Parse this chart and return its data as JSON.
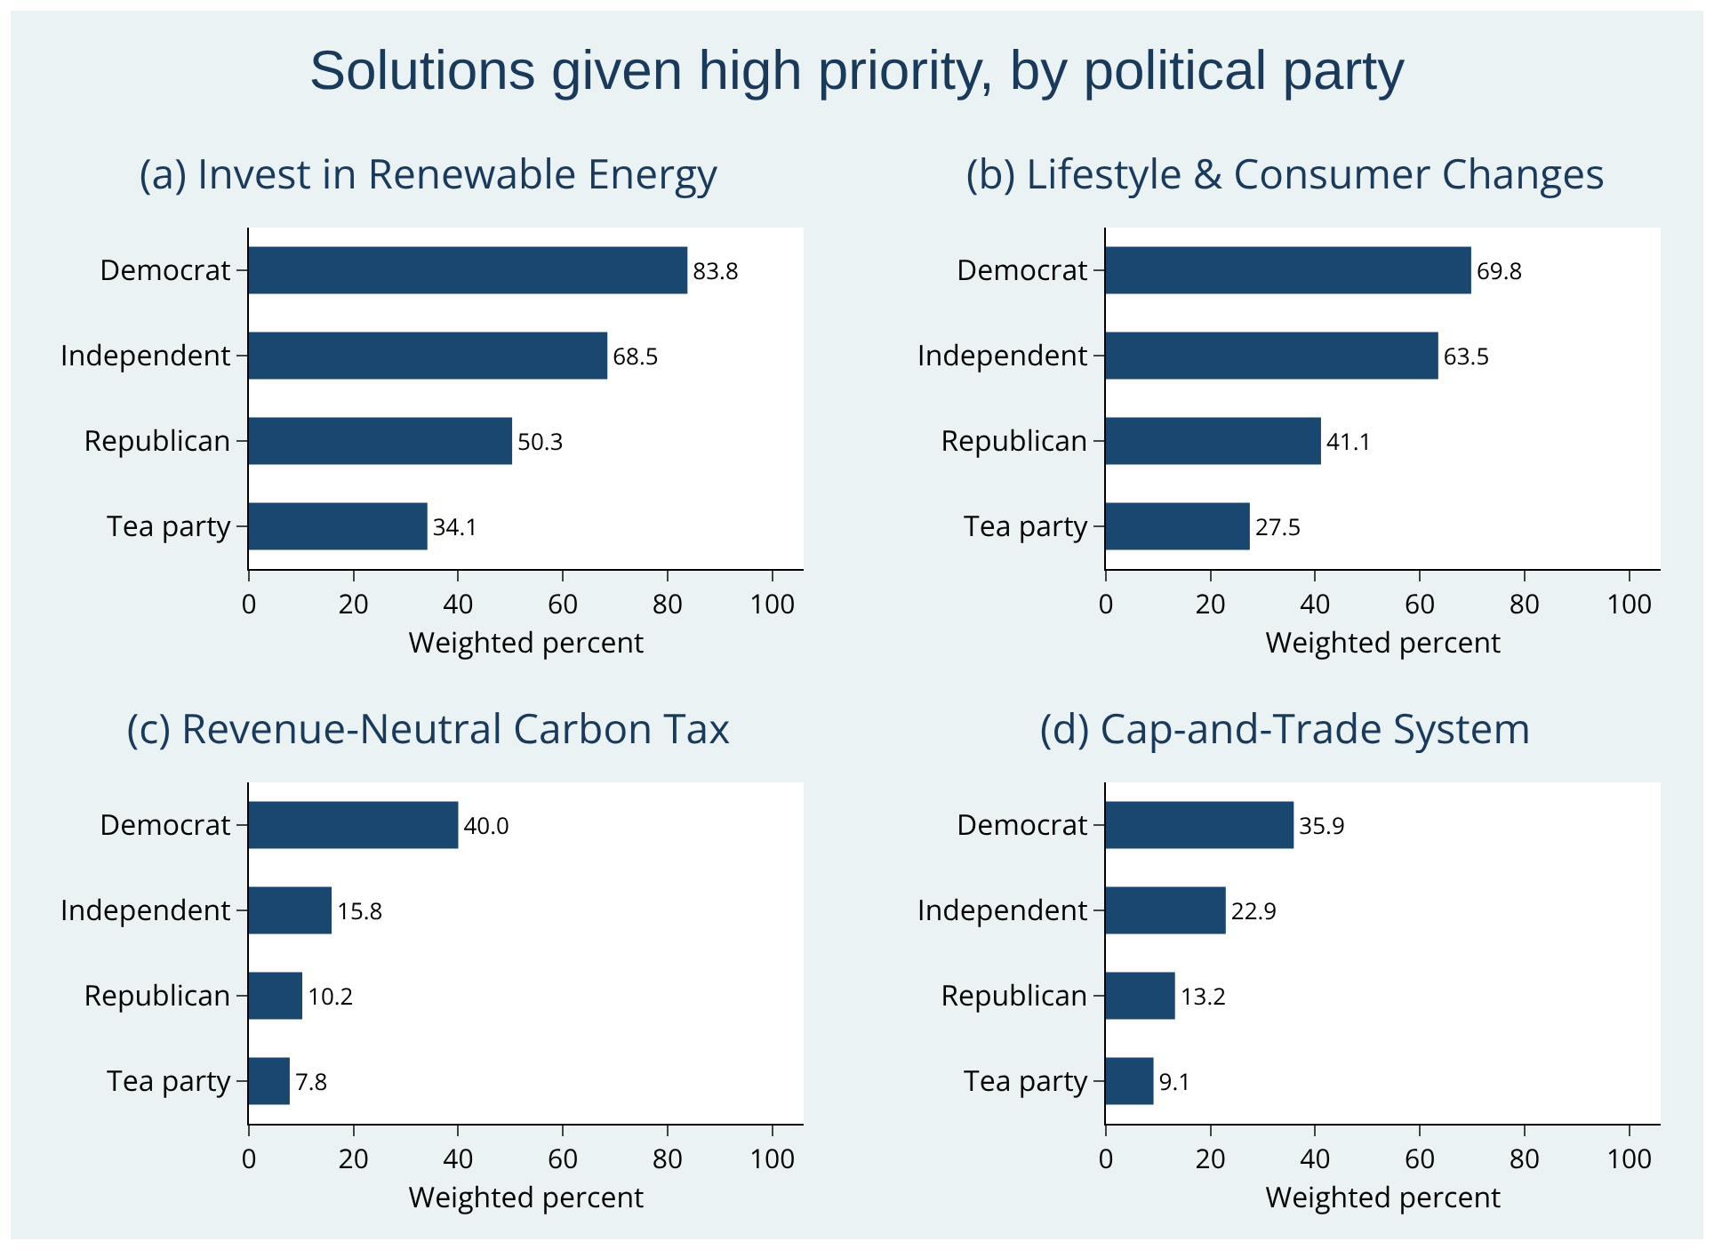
{
  "chart_data": [
    {
      "type": "bar",
      "orientation": "horizontal",
      "title": "(a) Invest in Renewable Energy",
      "annotations": [
        "Solutions given high priority, by political party"
      ],
      "categories": [
        "Democrat",
        "Independent",
        "Republican",
        "Tea party"
      ],
      "values": [
        83.8,
        68.5,
        50.3,
        34.1
      ],
      "value_labels": [
        "83.8",
        "68.5",
        "50.3",
        "34.1"
      ],
      "color": "#1a476f",
      "xlim": [
        0,
        106
      ],
      "xticks": [
        0,
        20,
        40,
        60,
        80,
        100
      ],
      "xlabel": "Weighted percent"
    },
    {
      "type": "bar",
      "orientation": "horizontal",
      "title": "(b) Lifestyle & Consumer Changes",
      "categories": [
        "Democrat",
        "Independent",
        "Republican",
        "Tea party"
      ],
      "values": [
        69.8,
        63.5,
        41.1,
        27.5
      ],
      "value_labels": [
        "69.8",
        "63.5",
        "41.1",
        "27.5"
      ],
      "color": "#1a476f",
      "xlim": [
        0,
        106
      ],
      "xticks": [
        0,
        20,
        40,
        60,
        80,
        100
      ],
      "xlabel": "Weighted percent"
    },
    {
      "type": "bar",
      "orientation": "horizontal",
      "title": "(c) Revenue-Neutral Carbon Tax",
      "categories": [
        "Democrat",
        "Independent",
        "Republican",
        "Tea party"
      ],
      "values": [
        40.0,
        15.8,
        10.2,
        7.8
      ],
      "value_labels": [
        "40.0",
        "15.8",
        "10.2",
        "7.8"
      ],
      "color": "#1a476f",
      "xlim": [
        0,
        106
      ],
      "xticks": [
        0,
        20,
        40,
        60,
        80,
        100
      ],
      "xlabel": "Weighted percent"
    },
    {
      "type": "bar",
      "orientation": "horizontal",
      "title": "(d) Cap-and-Trade System",
      "categories": [
        "Democrat",
        "Independent",
        "Republican",
        "Tea party"
      ],
      "values": [
        35.9,
        22.9,
        13.2,
        9.1
      ],
      "value_labels": [
        "35.9",
        "22.9",
        "13.2",
        "9.1"
      ],
      "color": "#1a476f",
      "xlim": [
        0,
        106
      ],
      "xticks": [
        0,
        20,
        40,
        60,
        80,
        100
      ],
      "xlabel": "Weighted percent"
    }
  ]
}
